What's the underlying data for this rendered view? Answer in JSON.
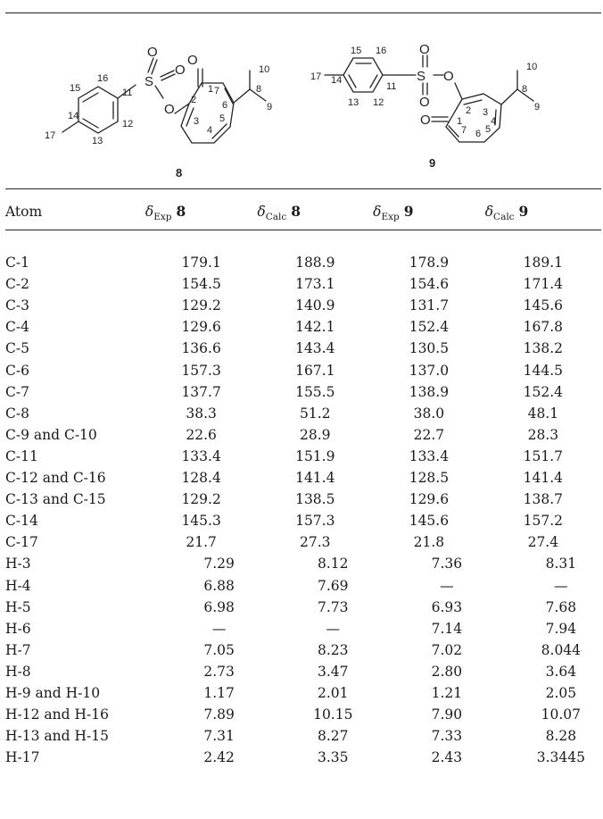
{
  "figure": {
    "compound_8": {
      "label": "8",
      "atoms": {
        "O_ketone": "O",
        "S": "S",
        "O_s1": "O",
        "O_s2": "O",
        "O_ester": "O"
      },
      "numbers": [
        "1",
        "2",
        "3",
        "4",
        "5",
        "6",
        "7",
        "8",
        "9",
        "10",
        "11",
        "12",
        "13",
        "14",
        "15",
        "16",
        "17"
      ]
    },
    "compound_9": {
      "label": "9",
      "atoms": {
        "O_ketone": "O",
        "S": "S",
        "O_s1": "O",
        "O_s2": "O",
        "O_ester": "O"
      },
      "numbers": [
        "1",
        "2",
        "3",
        "4",
        "5",
        "6",
        "7",
        "8",
        "9",
        "10",
        "11",
        "12",
        "13",
        "14",
        "15",
        "16",
        "17"
      ]
    }
  },
  "table": {
    "headers": {
      "atom": "Atom",
      "delta": "δ",
      "exp": "Exp",
      "calc": "Calc",
      "cmpd8": "8",
      "cmpd9": "9"
    },
    "rows": [
      {
        "atom": "C-1",
        "exp8": "179.1",
        "calc8": "188.9",
        "exp9": "178.9",
        "calc9": "189.1"
      },
      {
        "atom": "C-2",
        "exp8": "154.5",
        "calc8": "173.1",
        "exp9": "154.6",
        "calc9": "171.4"
      },
      {
        "atom": "C-3",
        "exp8": "129.2",
        "calc8": "140.9",
        "exp9": "131.7",
        "calc9": "145.6"
      },
      {
        "atom": "C-4",
        "exp8": "129.6",
        "calc8": "142.1",
        "exp9": "152.4",
        "calc9": "167.8"
      },
      {
        "atom": "C-5",
        "exp8": "136.6",
        "calc8": "143.4",
        "exp9": "130.5",
        "calc9": "138.2"
      },
      {
        "atom": "C-6",
        "exp8": "157.3",
        "calc8": "167.1",
        "exp9": "137.0",
        "calc9": "144.5"
      },
      {
        "atom": "C-7",
        "exp8": "137.7",
        "calc8": "155.5",
        "exp9": "138.9",
        "calc9": "152.4"
      },
      {
        "atom": "C-8",
        "exp8": "38.3",
        "calc8": "51.2",
        "exp9": "38.0",
        "calc9": "48.1"
      },
      {
        "atom": "C-9 and C-10",
        "exp8": "22.6",
        "calc8": "28.9",
        "exp9": "22.7",
        "calc9": "28.3"
      },
      {
        "atom": "C-11",
        "exp8": "133.4",
        "calc8": "151.9",
        "exp9": "133.4",
        "calc9": "151.7"
      },
      {
        "atom": "C-12 and C-16",
        "exp8": "128.4",
        "calc8": "141.4",
        "exp9": "128.5",
        "calc9": "141.4"
      },
      {
        "atom": "C-13 and C-15",
        "exp8": "129.2",
        "calc8": "138.5",
        "exp9": "129.6",
        "calc9": "138.7"
      },
      {
        "atom": "C-14",
        "exp8": "145.3",
        "calc8": "157.3",
        "exp9": "145.6",
        "calc9": "157.2"
      },
      {
        "atom": "C-17",
        "exp8": "21.7",
        "calc8": "27.3",
        "exp9": "21.8",
        "calc9": "27.4"
      },
      {
        "atom": "H-3",
        "exp8": "7.29",
        "calc8": "8.12",
        "exp9": "7.36",
        "calc9": "8.31"
      },
      {
        "atom": "H-4",
        "exp8": "6.88",
        "calc8": "7.69",
        "exp9": "—",
        "calc9": "—"
      },
      {
        "atom": "H-5",
        "exp8": "6.98",
        "calc8": "7.73",
        "exp9": "6.93",
        "calc9": "7.68"
      },
      {
        "atom": "H-6",
        "exp8": "—",
        "calc8": "—",
        "exp9": "7.14",
        "calc9": "7.94"
      },
      {
        "atom": "H-7",
        "exp8": "7.05",
        "calc8": "8.23",
        "exp9": "7.02",
        "calc9": "8.044"
      },
      {
        "atom": "H-8",
        "exp8": "2.73",
        "calc8": "3.47",
        "exp9": "2.80",
        "calc9": "3.64"
      },
      {
        "atom": "H-9 and H-10",
        "exp8": "1.17",
        "calc8": "2.01",
        "exp9": "1.21",
        "calc9": "2.05"
      },
      {
        "atom": "H-12 and H-16",
        "exp8": "7.89",
        "calc8": "10.15",
        "exp9": "7.90",
        "calc9": "10.07"
      },
      {
        "atom": "H-13 and H-15",
        "exp8": "7.31",
        "calc8": "8.27",
        "exp9": "7.33",
        "calc9": "8.28"
      },
      {
        "atom": "H-17",
        "exp8": "2.42",
        "calc8": "3.35",
        "exp9": "2.43",
        "calc9": "3.3445"
      }
    ]
  }
}
